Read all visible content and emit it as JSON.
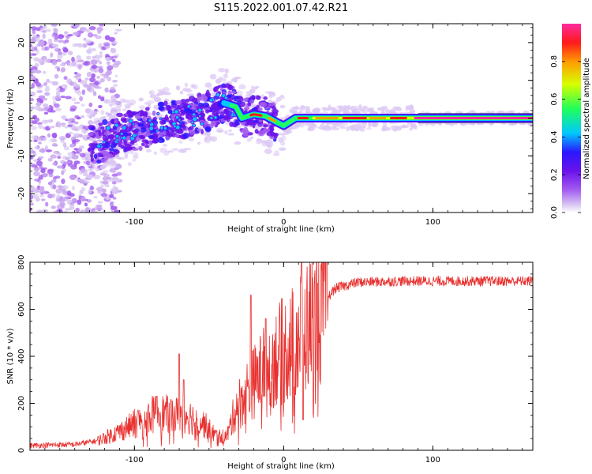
{
  "figure_title": "S115.2022.001.07.42.R21",
  "colors": {
    "snr_line": "#e8312f",
    "axis": "#000000",
    "spectro_scale": [
      "#ffffff",
      "#d9c8f2",
      "#a35cf0",
      "#6a12ea",
      "#2a17ff",
      "#00c8ff",
      "#20ff5a",
      "#d8ff00",
      "#ff9a00",
      "#ff1a1a",
      "#ff2aa0"
    ]
  },
  "chart_data": [
    {
      "type": "heatmap",
      "panel": "spectrogram",
      "xlabel": "Height of straight line (km)",
      "ylabel": "Frequency (Hz)",
      "xlim": [
        -170,
        167
      ],
      "ylim": [
        -25,
        25
      ],
      "x_ticks": [
        -100,
        0,
        100
      ],
      "y_ticks": [
        -20,
        -10,
        0,
        10,
        20
      ],
      "colorbar": {
        "label": "Normalized spectral amplitude",
        "range": [
          0,
          1
        ],
        "ticks": [
          0.0,
          0.2,
          0.4,
          0.6,
          0.8
        ]
      },
      "ridge": {
        "description_points": [
          {
            "x": -125,
            "y": -7
          },
          {
            "x": -110,
            "y": -4
          },
          {
            "x": -95,
            "y": -3
          },
          {
            "x": -80,
            "y": -1
          },
          {
            "x": -65,
            "y": 0
          },
          {
            "x": -50,
            "y": 2
          },
          {
            "x": -40,
            "y": 4
          },
          {
            "x": -32,
            "y": 3
          },
          {
            "x": -28,
            "y": 0
          },
          {
            "x": -20,
            "y": 1
          },
          {
            "x": -12,
            "y": 0.5
          },
          {
            "x": -5,
            "y": -1
          },
          {
            "x": 0,
            "y": -2
          },
          {
            "x": 8,
            "y": 0
          },
          {
            "x": 20,
            "y": 0
          },
          {
            "x": 167,
            "y": 0
          }
        ]
      }
    },
    {
      "type": "line",
      "panel": "snr",
      "xlabel": "Height of straight line (km)",
      "ylabel": "SNR (10 * v/v)",
      "xlim": [
        -170,
        167
      ],
      "ylim": [
        0,
        800
      ],
      "x_ticks": [
        -100,
        0,
        100
      ],
      "y_ticks": [
        0,
        200,
        400,
        600,
        800
      ],
      "series": [
        {
          "envelope": [
            {
              "x": -170,
              "y": 20
            },
            {
              "x": -140,
              "y": 25
            },
            {
              "x": -125,
              "y": 40
            },
            {
              "x": -110,
              "y": 80
            },
            {
              "x": -95,
              "y": 130
            },
            {
              "x": -85,
              "y": 160
            },
            {
              "x": -75,
              "y": 150
            },
            {
              "x": -65,
              "y": 150
            },
            {
              "x": -55,
              "y": 120
            },
            {
              "x": -45,
              "y": 60
            },
            {
              "x": -38,
              "y": 60
            },
            {
              "x": -32,
              "y": 180
            },
            {
              "x": -25,
              "y": 250
            },
            {
              "x": -15,
              "y": 330
            },
            {
              "x": -5,
              "y": 400
            },
            {
              "x": 5,
              "y": 450
            },
            {
              "x": 15,
              "y": 520
            },
            {
              "x": 25,
              "y": 620
            },
            {
              "x": 35,
              "y": 690
            },
            {
              "x": 50,
              "y": 715
            },
            {
              "x": 80,
              "y": 720
            },
            {
              "x": 120,
              "y": 720
            },
            {
              "x": 167,
              "y": 720
            }
          ],
          "peaks": [
            {
              "x": -85,
              "y": 230
            },
            {
              "x": -70,
              "y": 410
            },
            {
              "x": -67,
              "y": 300
            },
            {
              "x": -22,
              "y": 660
            },
            {
              "x": -12,
              "y": 560
            },
            {
              "x": 12,
              "y": 800
            },
            {
              "x": 13,
              "y": 130
            }
          ]
        }
      ]
    }
  ]
}
